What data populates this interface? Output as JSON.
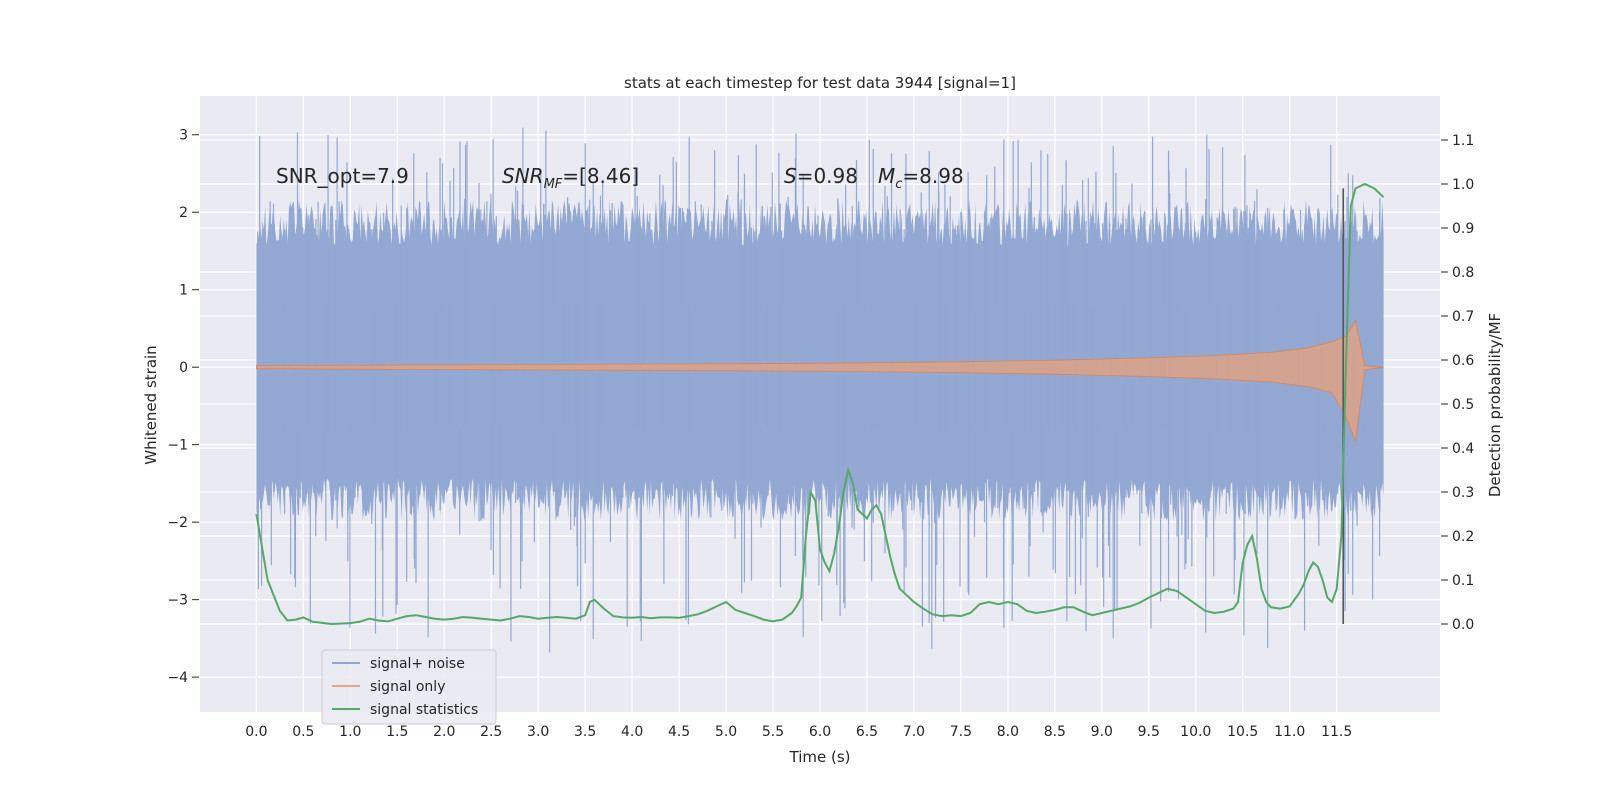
{
  "chart_data": {
    "type": "line",
    "title": "stats at each timestep for test data 3944 [signal=1]",
    "xlabel": "Time (s)",
    "ylabel_left": "Whitened strain",
    "ylabel_right": "Detection probability/MF",
    "xlim": [
      -0.6,
      12.6
    ],
    "ylim_left": [
      -4.45,
      3.5
    ],
    "ylim_right": [
      -0.2,
      1.2
    ],
    "x_ticks": [
      "0.0",
      "0.5",
      "1.0",
      "1.5",
      "2.0",
      "2.5",
      "3.0",
      "3.5",
      "4.0",
      "4.5",
      "5.0",
      "5.5",
      "6.0",
      "6.5",
      "7.0",
      "7.5",
      "8.0",
      "8.5",
      "9.0",
      "9.5",
      "10.0",
      "10.5",
      "11.0",
      "11.5"
    ],
    "y_left_ticks": [
      "3",
      "2",
      "1",
      "0",
      "−1",
      "−2",
      "−3",
      "−4"
    ],
    "y_right_ticks": [
      "1.1",
      "1.0",
      "0.9",
      "0.8",
      "0.7",
      "0.6",
      "0.5",
      "0.4",
      "0.3",
      "0.2",
      "0.1",
      "0.0"
    ],
    "grid": true,
    "legend_position": "lower-left",
    "annotations": {
      "snr_opt": "SNR_opt=7.9",
      "snr_mf_name": "SNR",
      "snr_mf_sub": "MF",
      "snr_mf_value": "=[8.46]",
      "s_name": "S",
      "s_value": "=0.98",
      "mc_name": "M",
      "mc_sub": "c",
      "mc_value": "=8.98"
    },
    "marker_line_x": 11.57,
    "series": [
      {
        "name": "signal+ noise",
        "axis": "left",
        "color": "#8fa5d0",
        "t_range": [
          0,
          12.0
        ],
        "band_upper_approx": 1.75,
        "band_lower_approx": -1.6,
        "peak_max": 3.1,
        "peak_min": -3.7
      },
      {
        "name": "signal only",
        "axis": "left",
        "color": "#dd8452",
        "envelope": {
          "t": [
            0,
            2,
            4,
            6,
            7.5,
            8.5,
            9.5,
            10.2,
            10.8,
            11.2,
            11.45,
            11.6,
            11.7,
            11.8,
            12.0
          ],
          "amp": [
            0.02,
            0.03,
            0.04,
            0.05,
            0.07,
            0.09,
            0.12,
            0.15,
            0.19,
            0.25,
            0.33,
            0.4,
            0.6,
            0.02,
            0.0
          ]
        }
      },
      {
        "name": "signal statistics",
        "axis": "right",
        "color": "#55a868",
        "x": [
          0,
          0.12,
          0.25,
          0.33,
          0.42,
          0.5,
          0.6,
          0.8,
          1.0,
          1.1,
          1.2,
          1.3,
          1.4,
          1.5,
          1.6,
          1.7,
          1.8,
          1.9,
          2.0,
          2.1,
          2.2,
          2.3,
          2.4,
          2.5,
          2.6,
          2.7,
          2.8,
          2.9,
          3.0,
          3.1,
          3.2,
          3.3,
          3.4,
          3.5,
          3.55,
          3.6,
          3.7,
          3.8,
          3.9,
          4.0,
          4.1,
          4.2,
          4.3,
          4.4,
          4.5,
          4.6,
          4.7,
          4.8,
          4.9,
          5.0,
          5.1,
          5.2,
          5.3,
          5.4,
          5.5,
          5.6,
          5.7,
          5.75,
          5.8,
          5.85,
          5.9,
          5.95,
          6.0,
          6.05,
          6.1,
          6.15,
          6.2,
          6.25,
          6.3,
          6.35,
          6.4,
          6.45,
          6.5,
          6.55,
          6.6,
          6.65,
          6.7,
          6.75,
          6.8,
          6.85,
          6.9,
          6.95,
          7.0,
          7.1,
          7.2,
          7.3,
          7.4,
          7.5,
          7.6,
          7.7,
          7.8,
          7.9,
          8.0,
          8.1,
          8.2,
          8.3,
          8.4,
          8.5,
          8.6,
          8.7,
          8.8,
          8.9,
          9.0,
          9.1,
          9.2,
          9.3,
          9.4,
          9.5,
          9.6,
          9.7,
          9.8,
          9.9,
          10.0,
          10.1,
          10.2,
          10.3,
          10.4,
          10.45,
          10.5,
          10.55,
          10.6,
          10.65,
          10.7,
          10.75,
          10.8,
          10.9,
          11.0,
          11.05,
          11.1,
          11.15,
          11.2,
          11.25,
          11.3,
          11.35,
          11.4,
          11.45,
          11.5,
          11.55,
          11.6,
          11.65,
          11.7,
          11.8,
          11.9,
          12.0
        ],
        "y": [
          0.25,
          0.1,
          0.03,
          0.008,
          0.01,
          0.015,
          0.005,
          0.0,
          0.002,
          0.005,
          0.012,
          0.008,
          0.006,
          0.012,
          0.018,
          0.02,
          0.016,
          0.012,
          0.01,
          0.012,
          0.016,
          0.014,
          0.012,
          0.01,
          0.008,
          0.012,
          0.018,
          0.016,
          0.012,
          0.014,
          0.016,
          0.014,
          0.012,
          0.02,
          0.05,
          0.055,
          0.035,
          0.018,
          0.015,
          0.014,
          0.016,
          0.013,
          0.015,
          0.015,
          0.014,
          0.018,
          0.022,
          0.03,
          0.04,
          0.05,
          0.032,
          0.025,
          0.018,
          0.01,
          0.006,
          0.01,
          0.025,
          0.04,
          0.06,
          0.2,
          0.3,
          0.28,
          0.17,
          0.14,
          0.12,
          0.16,
          0.22,
          0.3,
          0.35,
          0.32,
          0.26,
          0.25,
          0.24,
          0.26,
          0.27,
          0.25,
          0.2,
          0.15,
          0.11,
          0.08,
          0.07,
          0.06,
          0.05,
          0.035,
          0.022,
          0.018,
          0.02,
          0.018,
          0.025,
          0.045,
          0.05,
          0.045,
          0.05,
          0.045,
          0.03,
          0.025,
          0.028,
          0.032,
          0.038,
          0.038,
          0.028,
          0.02,
          0.025,
          0.03,
          0.035,
          0.04,
          0.048,
          0.06,
          0.07,
          0.08,
          0.075,
          0.06,
          0.045,
          0.03,
          0.025,
          0.028,
          0.035,
          0.05,
          0.14,
          0.18,
          0.2,
          0.15,
          0.08,
          0.05,
          0.038,
          0.035,
          0.04,
          0.055,
          0.07,
          0.09,
          0.12,
          0.14,
          0.13,
          0.1,
          0.06,
          0.05,
          0.08,
          0.2,
          0.6,
          0.95,
          0.99,
          1.0,
          0.99,
          0.97
        ]
      }
    ]
  },
  "legend": {
    "items": [
      "signal+ noise",
      "signal only",
      "signal statistics"
    ]
  }
}
